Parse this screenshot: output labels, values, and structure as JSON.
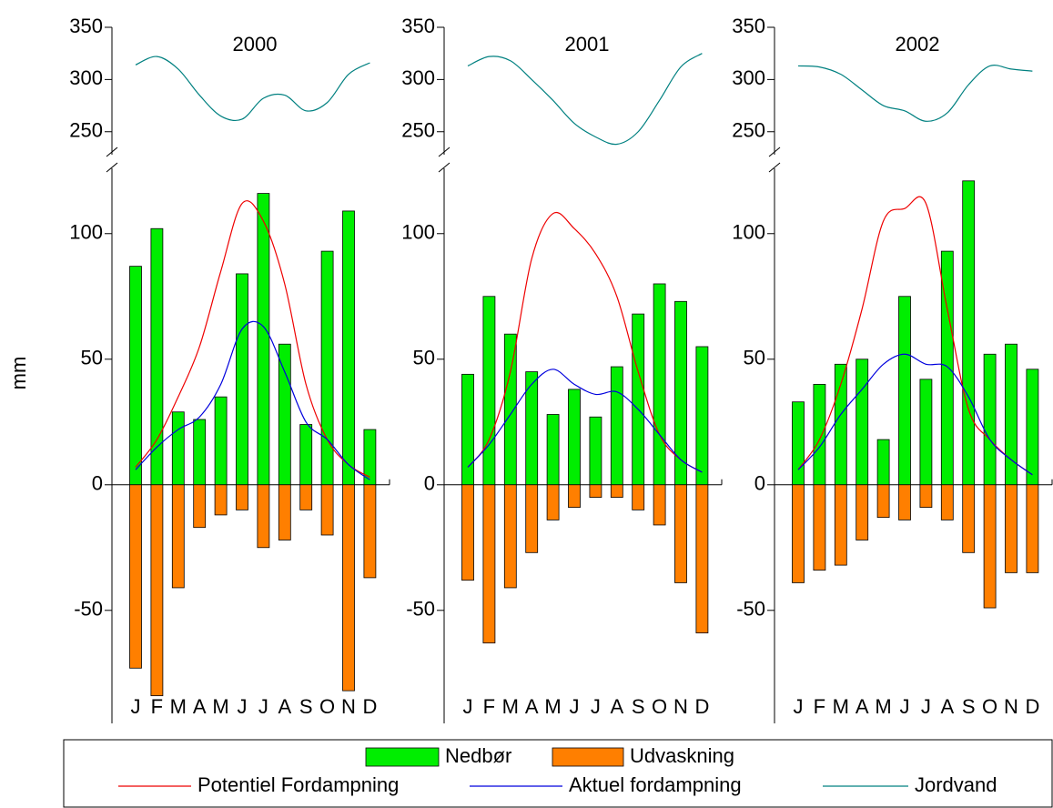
{
  "chart_data": {
    "type": "bar",
    "y_label": "mm",
    "categories": [
      "J",
      "F",
      "M",
      "A",
      "M",
      "J",
      "J",
      "A",
      "S",
      "O",
      "N",
      "D"
    ],
    "ylim": [
      -95,
      126
    ],
    "yticks": [
      -50,
      0,
      50,
      100
    ],
    "y2lim": [
      228,
      350
    ],
    "y2ticks": [
      250,
      300,
      350
    ],
    "series": [
      {
        "name": "Nedbør",
        "color": "#00ee00",
        "kind": "bar"
      },
      {
        "name": "Udvaskning",
        "color": "#ff7f00",
        "kind": "bar"
      },
      {
        "name": "Potentiel Fordampning",
        "color": "#ee0000",
        "kind": "line"
      },
      {
        "name": "Aktuel fordampning",
        "color": "#0000dd",
        "kind": "line"
      },
      {
        "name": "Jordvand",
        "color": "#008080",
        "kind": "line",
        "axis": "y2"
      }
    ],
    "panels": [
      {
        "title": "2000",
        "values": [
          [
            87,
            102,
            29,
            26,
            35,
            84,
            116,
            56,
            24,
            93,
            109,
            22
          ],
          [
            -73,
            -84,
            -41,
            -17,
            -12,
            -10,
            -25,
            -22,
            -10,
            -20,
            -82,
            -37
          ],
          [
            7,
            18,
            35,
            55,
            85,
            112,
            105,
            80,
            40,
            18,
            8,
            3
          ],
          [
            6,
            15,
            22,
            27,
            40,
            62,
            63,
            45,
            25,
            18,
            8,
            2
          ],
          [
            314,
            322,
            310,
            285,
            265,
            262,
            282,
            285,
            270,
            278,
            305,
            316
          ]
        ]
      },
      {
        "title": "2001",
        "values": [
          [
            44,
            75,
            60,
            45,
            28,
            38,
            27,
            47,
            68,
            80,
            73,
            55
          ],
          [
            -38,
            -63,
            -41,
            -27,
            -14,
            -9,
            -5,
            -5,
            -10,
            -16,
            -39,
            -59
          ],
          [
            7,
            18,
            45,
            90,
            108,
            102,
            92,
            75,
            45,
            20,
            10,
            5
          ],
          [
            7,
            16,
            28,
            40,
            46,
            40,
            36,
            37,
            30,
            20,
            10,
            5
          ],
          [
            313,
            322,
            318,
            300,
            280,
            258,
            245,
            238,
            250,
            280,
            312,
            325
          ]
        ]
      },
      {
        "title": "2002",
        "values": [
          [
            33,
            40,
            48,
            50,
            18,
            75,
            42,
            93,
            121,
            52,
            56,
            46
          ],
          [
            -39,
            -34,
            -32,
            -22,
            -13,
            -14,
            -9,
            -14,
            -27,
            -49,
            -35,
            -35
          ],
          [
            6,
            18,
            40,
            70,
            105,
            110,
            112,
            70,
            30,
            18,
            10,
            4
          ],
          [
            6,
            15,
            28,
            38,
            48,
            52,
            48,
            47,
            35,
            18,
            10,
            4
          ],
          [
            313,
            312,
            305,
            290,
            275,
            270,
            260,
            268,
            295,
            313,
            310,
            308
          ]
        ]
      }
    ]
  }
}
